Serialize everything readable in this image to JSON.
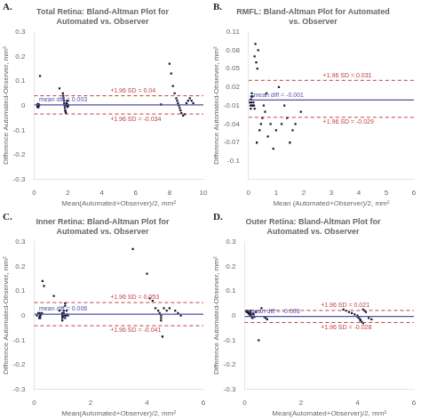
{
  "chart_data": [
    {
      "type": "scatter",
      "panel_label": "A.",
      "title": "Total Retina: Bland-Altman Plot for Automated vs. Observer",
      "xlabel": "Mean(Automated+Observer)/2, mm²",
      "ylabel": "Difference Automated-Observer, mm²",
      "xlim": [
        0,
        10
      ],
      "ylim": [
        -0.3,
        0.3
      ],
      "xticks": [
        0,
        2,
        4,
        6,
        8,
        10
      ],
      "yticks": [
        -0.3,
        -0.2,
        -0.1,
        0,
        0.1,
        0.2,
        0.3
      ],
      "grid": false,
      "series": [
        {
          "color": "#1a1a3a",
          "marker": "square",
          "x": [
            0.2,
            0.2,
            0.2,
            0.22,
            0.22,
            0.22,
            0.25,
            0.25,
            0.28,
            0.3,
            0.35,
            1.5,
            1.7,
            1.72,
            1.74,
            1.76,
            1.78,
            1.8,
            1.82,
            1.84,
            1.86,
            1.88,
            1.9,
            1.92,
            1.94,
            1.96,
            1.98,
            2.0,
            2.02,
            7.5,
            8.0,
            8.1,
            8.2,
            8.3,
            8.4,
            8.45,
            8.5,
            8.55,
            8.6,
            8.65,
            8.7,
            8.8,
            8.9,
            9.0,
            9.1,
            9.2,
            9.3,
            9.4
          ],
          "values": [
            0.005,
            0.0,
            -0.005,
            0.003,
            -0.003,
            0.007,
            0.0,
            -0.007,
            0.005,
            0.0,
            0.12,
            0.07,
            0.05,
            0.04,
            0.03,
            0.02,
            0.01,
            0.0,
            -0.01,
            -0.02,
            -0.025,
            -0.03,
            0.0,
            0.01,
            0.02,
            0.005,
            -0.005,
            0.02,
            0.0,
            0.005,
            0.17,
            0.13,
            0.08,
            0.05,
            0.03,
            0.02,
            0.01,
            0.0,
            -0.01,
            -0.02,
            -0.03,
            -0.04,
            -0.035,
            0.01,
            0.02,
            0.03,
            0.02,
            0.01
          ]
        }
      ],
      "annotations": [
        {
          "text": "+1.96 SD = 0.04",
          "y": 0.04,
          "color": "#c04040",
          "line_style": "dashed"
        },
        {
          "text": "mean diff = 0.003",
          "y": 0.003,
          "color": "#5050a0",
          "line_style": "solid"
        },
        {
          "text": "+1.96 SD = -0.034",
          "y": -0.034,
          "color": "#c04040",
          "line_style": "dashed"
        }
      ]
    },
    {
      "type": "scatter",
      "panel_label": "B.",
      "title": "RMFL: Bland-Altman Plot for Automated vs. Observer",
      "xlabel": "Mean (Automated+Observer)/2, mm²",
      "ylabel": "Difference Automated-Observer, mm²",
      "xlim": [
        0,
        6
      ],
      "ylim": [
        -0.13,
        0.11
      ],
      "xticks": [
        0,
        1,
        2,
        3,
        4,
        5,
        6
      ],
      "yticks": [
        -0.1,
        -0.07,
        -0.04,
        -0.01,
        0.02,
        0.05,
        0.08,
        0.11
      ],
      "grid": false,
      "series": [
        {
          "color": "#1a1a3a",
          "marker": "square",
          "x": [
            0.05,
            0.07,
            0.08,
            0.09,
            0.1,
            0.1,
            0.1,
            0.12,
            0.13,
            0.15,
            0.15,
            0.18,
            0.2,
            0.22,
            0.22,
            0.25,
            0.28,
            0.3,
            0.32,
            0.35,
            0.4,
            0.45,
            0.5,
            0.55,
            0.6,
            0.65,
            0.7,
            0.8,
            0.9,
            1.0,
            1.1,
            1.2,
            1.3,
            1.4,
            1.5,
            1.6,
            1.7,
            1.9
          ],
          "values": [
            -0.005,
            -0.01,
            -0.015,
            0.0,
            0.005,
            -0.005,
            0.0,
            0.01,
            -0.01,
            0.005,
            -0.01,
            -0.005,
            -0.01,
            -0.015,
            0.07,
            0.09,
            0.06,
            -0.07,
            0.05,
            0.08,
            -0.05,
            -0.04,
            -0.03,
            -0.01,
            -0.02,
            0.01,
            -0.06,
            -0.04,
            -0.08,
            -0.05,
            0.02,
            -0.04,
            -0.01,
            -0.03,
            -0.07,
            -0.05,
            -0.04,
            -0.02
          ]
        }
      ],
      "annotations": [
        {
          "text": "+1.96 SD = 0.031",
          "y": 0.031,
          "color": "#c04040",
          "line_style": "dashed"
        },
        {
          "text": "mean diff = -0.001",
          "y": -0.001,
          "color": "#5050a0",
          "line_style": "solid"
        },
        {
          "text": "+1.96 SD = -0.029",
          "y": -0.029,
          "color": "#c04040",
          "line_style": "dashed"
        }
      ]
    },
    {
      "type": "scatter",
      "panel_label": "C.",
      "title": "Inner Retina: Bland-Altman Plot for Automated vs. Observer",
      "xlabel": "Mean(Automated+Observer)/2, mm²",
      "ylabel": "Difference Automated-Observer, mm²",
      "xlim": [
        0,
        6
      ],
      "ylim": [
        -0.3,
        0.3
      ],
      "xticks": [
        0,
        2,
        4,
        6
      ],
      "yticks": [
        -0.3,
        -0.2,
        -0.1,
        0,
        0.1,
        0.2,
        0.3
      ],
      "grid": false,
      "series": [
        {
          "color": "#1a1a3a",
          "marker": "square",
          "x": [
            0.1,
            0.15,
            0.18,
            0.2,
            0.2,
            0.2,
            0.22,
            0.22,
            0.25,
            0.28,
            0.3,
            0.35,
            0.7,
            0.9,
            1.0,
            1.0,
            1.0,
            1.0,
            1.0,
            1.02,
            1.05,
            1.05,
            1.08,
            1.1,
            1.1,
            1.1,
            1.12,
            1.15,
            1.18,
            1.2,
            3.5,
            4.0,
            4.1,
            4.2,
            4.3,
            4.4,
            4.45,
            4.5,
            4.5,
            4.5,
            4.55,
            4.6,
            4.7,
            4.8,
            5.0,
            5.1,
            5.2
          ],
          "values": [
            0.0,
            0.01,
            -0.01,
            0.005,
            -0.005,
            0.01,
            -0.01,
            0.0,
            0.005,
            0.01,
            0.14,
            0.12,
            0.08,
            0.02,
            0.01,
            0.0,
            -0.01,
            -0.02,
            0.005,
            -0.005,
            0.01,
            0.02,
            0.0,
            0.05,
            0.04,
            -0.01,
            0.0,
            0.02,
            0.005,
            0.0,
            0.27,
            0.17,
            0.07,
            0.06,
            0.03,
            0.02,
            0.01,
            0.0,
            -0.01,
            -0.02,
            -0.085,
            0.03,
            0.02,
            0.03,
            0.02,
            0.01,
            0.0
          ]
        }
      ],
      "annotations": [
        {
          "text": "+1.96 SD = 0.053",
          "y": 0.053,
          "color": "#c04040",
          "line_style": "dashed"
        },
        {
          "text": "mean diff = 0.006",
          "y": 0.006,
          "color": "#5050a0",
          "line_style": "solid"
        },
        {
          "text": "+1.96 SD = -0.041",
          "y": -0.041,
          "color": "#c04040",
          "line_style": "dashed"
        }
      ]
    },
    {
      "type": "scatter",
      "panel_label": "D.",
      "title": "Outer Retina: Bland-Altman Plot for Automated vs. Observer",
      "xlabel": "Mean(Automated+Observer)/2, mm²",
      "ylabel": "Difference Automated-Observer, mm²",
      "xlim": [
        0,
        6
      ],
      "ylim": [
        -0.3,
        0.3
      ],
      "xticks": [
        0,
        2,
        4,
        6
      ],
      "yticks": [
        -0.3,
        -0.2,
        -0.1,
        0,
        0.1,
        0.2,
        0.3
      ],
      "grid": false,
      "series": [
        {
          "color": "#1a1a3a",
          "marker": "square",
          "x": [
            0.05,
            0.08,
            0.1,
            0.1,
            0.12,
            0.15,
            0.15,
            0.18,
            0.2,
            0.2,
            0.2,
            0.22,
            0.22,
            0.25,
            0.28,
            0.3,
            0.32,
            0.35,
            0.4,
            0.5,
            0.6,
            0.7,
            0.75,
            0.8,
            3.5,
            3.6,
            3.7,
            3.8,
            3.9,
            4.0,
            4.0,
            4.05,
            4.1,
            4.1,
            4.15,
            4.2,
            4.2,
            4.25,
            4.3,
            4.4,
            4.5
          ],
          "values": [
            0.018,
            0.015,
            0.02,
            0.016,
            0.012,
            0.01,
            0.008,
            0.005,
            0.02,
            0.015,
            0.01,
            0.005,
            0.0,
            -0.005,
            -0.01,
            0.008,
            0.005,
            -0.005,
            0.015,
            -0.1,
            0.03,
            -0.005,
            -0.01,
            -0.015,
            0.025,
            0.02,
            0.015,
            0.01,
            0.005,
            0.0,
            -0.005,
            -0.01,
            -0.015,
            -0.02,
            -0.025,
            0.025,
            -0.03,
            0.02,
            0.015,
            -0.01,
            -0.015
          ]
        }
      ],
      "annotations": [
        {
          "text": "+1.96 SD = 0.021",
          "y": 0.021,
          "color": "#c04040",
          "line_style": "dashed"
        },
        {
          "text": "mean diff = -0.003",
          "y": -0.003,
          "color": "#5050a0",
          "line_style": "solid"
        },
        {
          "text": "+1.96 SD = -0.028",
          "y": -0.028,
          "color": "#c04040",
          "line_style": "dashed"
        }
      ]
    }
  ]
}
